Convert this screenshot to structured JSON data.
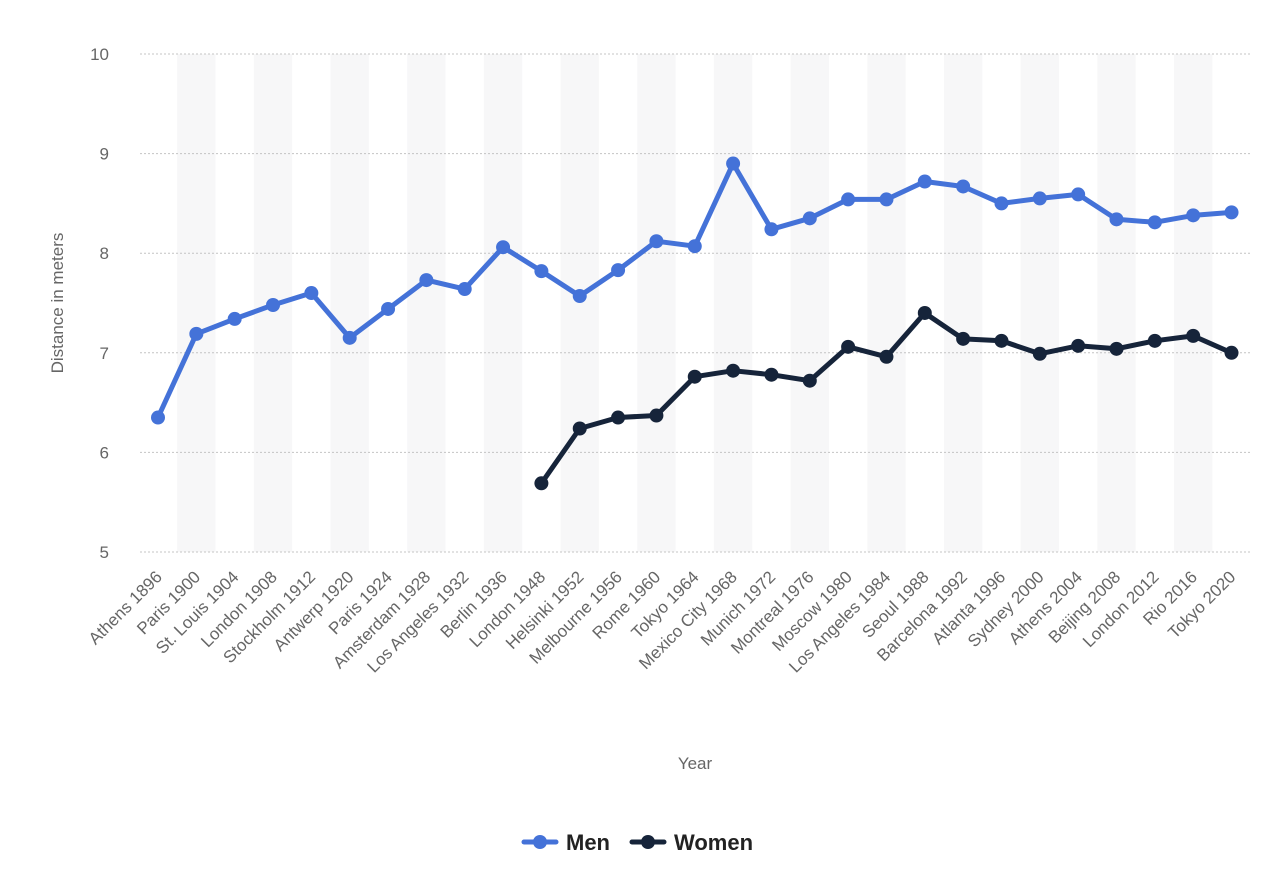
{
  "chart_data": {
    "type": "line",
    "title": "",
    "xlabel": "Year",
    "ylabel": "Distance in meters",
    "ylim": [
      5,
      10
    ],
    "yticks": [
      "5",
      "6",
      "7",
      "8",
      "9",
      "10"
    ],
    "grid": true,
    "legend_position": "bottom",
    "categories": [
      "Athens 1896",
      "Paris 1900",
      "St. Louis 1904",
      "London 1908",
      "Stockholm 1912",
      "Antwerp 1920",
      "Paris 1924",
      "Amsterdam 1928",
      "Los Angeles 1932",
      "Berlin 1936",
      "London 1948",
      "Helsinki 1952",
      "Melbourne 1956",
      "Rome 1960",
      "Tokyo 1964",
      "Mexico City 1968",
      "Munich 1972",
      "Montreal 1976",
      "Moscow 1980",
      "Los Angeles 1984",
      "Seoul 1988",
      "Barcelona 1992",
      "Atlanta 1996",
      "Sydney 2000",
      "Athens 2004",
      "Beijing 2008",
      "London 2012",
      "Rio 2016",
      "Tokyo 2020"
    ],
    "series": [
      {
        "name": "Men",
        "color": "#4472d8",
        "values": [
          6.35,
          7.19,
          7.34,
          7.48,
          7.6,
          7.15,
          7.44,
          7.73,
          7.64,
          8.06,
          7.82,
          7.57,
          7.83,
          8.12,
          8.07,
          8.9,
          8.24,
          8.35,
          8.54,
          8.54,
          8.72,
          8.67,
          8.5,
          8.55,
          8.59,
          8.34,
          8.31,
          8.38,
          8.41
        ]
      },
      {
        "name": "Women",
        "color": "#16243a",
        "values": [
          null,
          null,
          null,
          null,
          null,
          null,
          null,
          null,
          null,
          null,
          5.69,
          6.24,
          6.35,
          6.37,
          6.76,
          6.82,
          6.78,
          6.72,
          7.06,
          6.96,
          7.4,
          7.14,
          7.12,
          6.99,
          7.07,
          7.04,
          7.12,
          7.17,
          7.0
        ]
      }
    ]
  }
}
